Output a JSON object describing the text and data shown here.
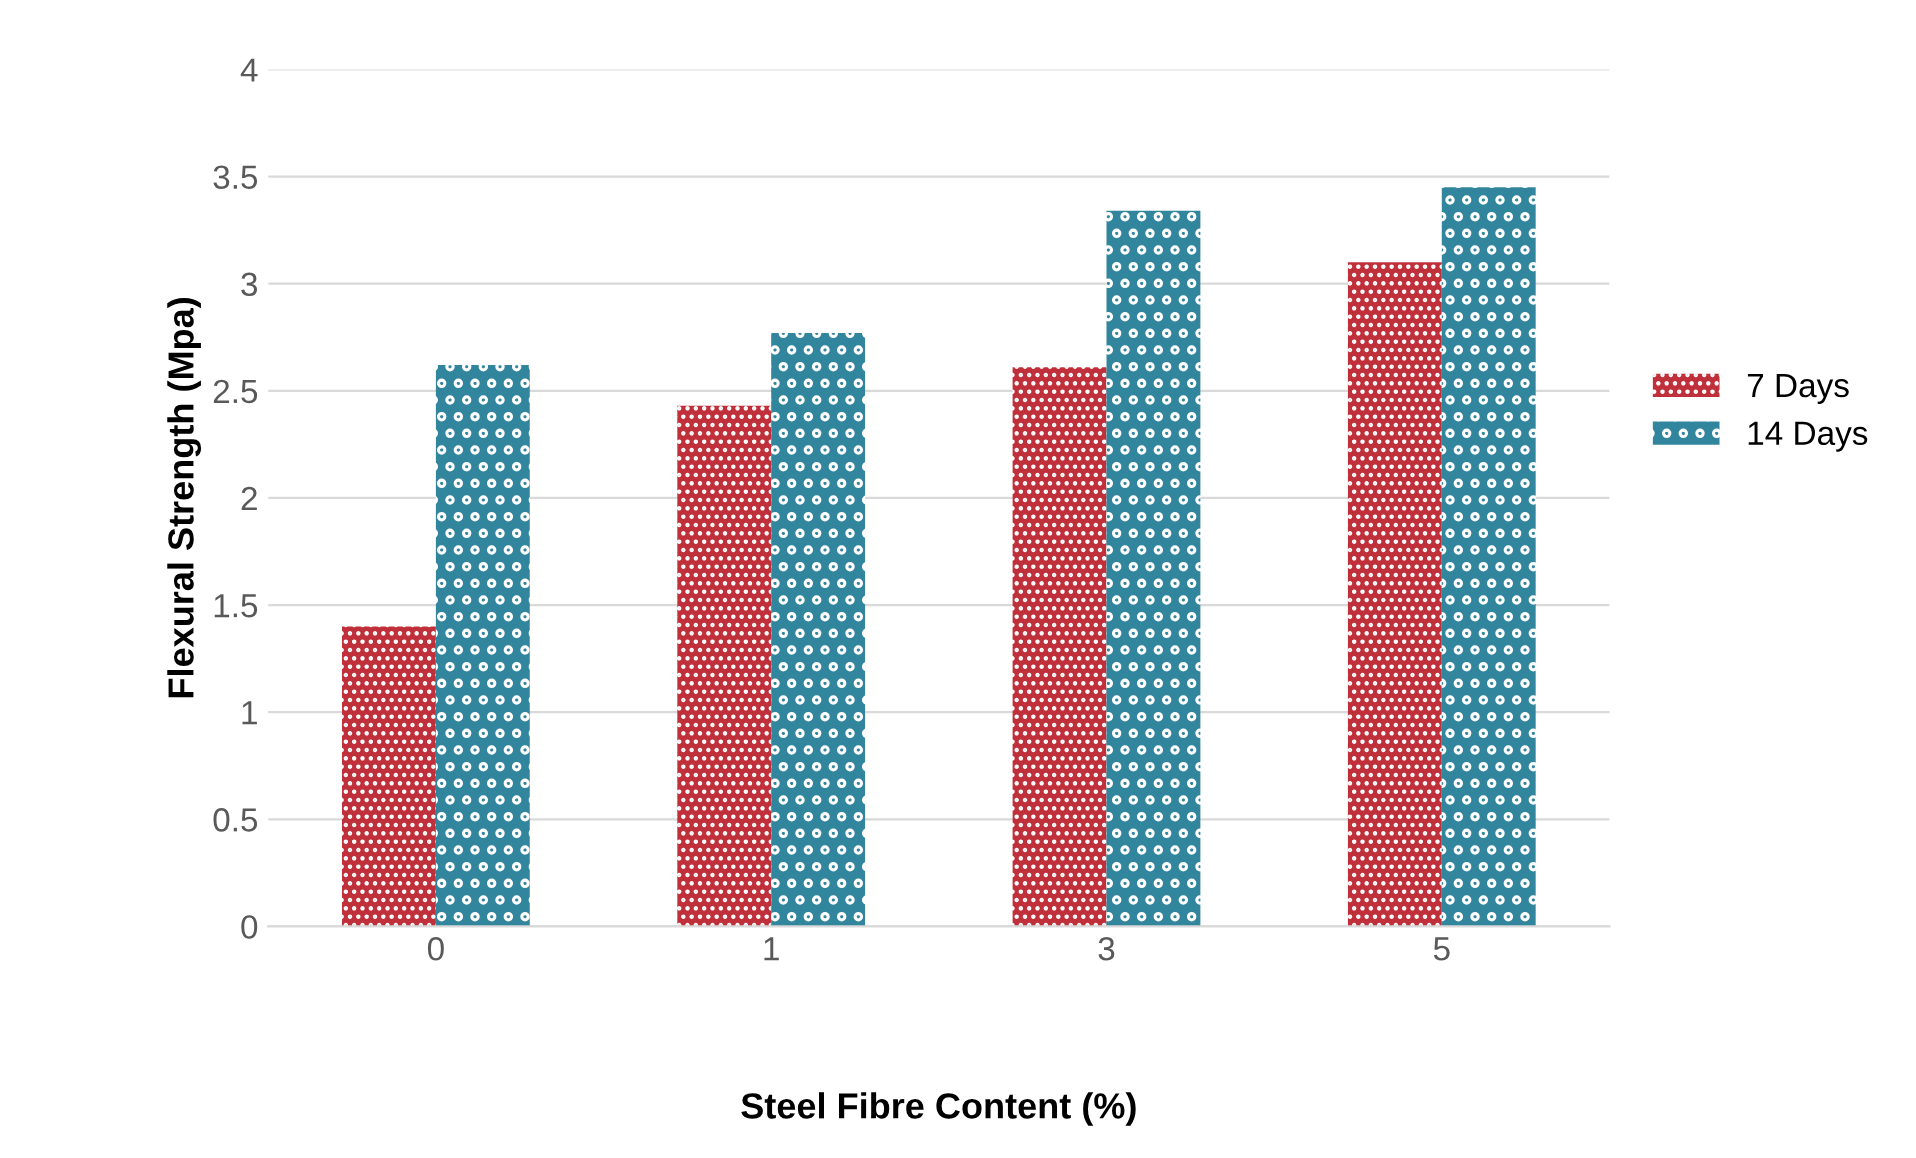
{
  "chart_data": {
    "type": "bar",
    "xlabel": "Steel Fibre Content (%)",
    "ylabel": "Flexural Strength (Mpa)",
    "categories": [
      "0",
      "1",
      "3",
      "5"
    ],
    "series": [
      {
        "name": "7 Days",
        "color": "#c0303a",
        "values": [
          1.4,
          2.43,
          2.61,
          3.1
        ]
      },
      {
        "name": "14 Days",
        "color": "#31859c",
        "values": [
          2.62,
          2.77,
          3.34,
          3.45
        ]
      }
    ],
    "ylim": [
      0,
      4
    ],
    "yticks": [
      0,
      0.5,
      1,
      1.5,
      2,
      2.5,
      3,
      3.5,
      4
    ],
    "grid": "y",
    "legend": "right"
  }
}
